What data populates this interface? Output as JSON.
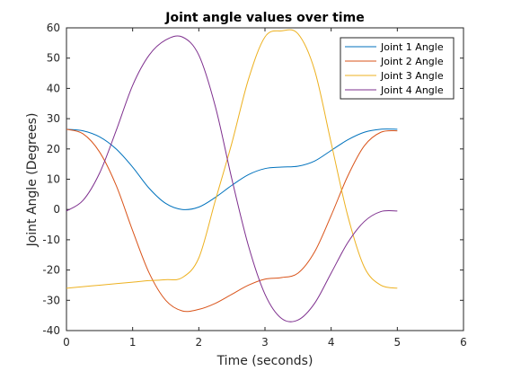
{
  "chart_data": {
    "type": "line",
    "title": "Joint angle values over time",
    "xlabel": "Time (seconds)",
    "ylabel": "Joint Angle (Degrees)",
    "xlim": [
      0,
      6
    ],
    "ylim": [
      -40,
      60
    ],
    "xticks": [
      0,
      1,
      2,
      3,
      4,
      5,
      6
    ],
    "yticks": [
      -40,
      -30,
      -20,
      -10,
      0,
      10,
      20,
      30,
      40,
      50,
      60
    ],
    "grid": false,
    "legend_position": "top-right",
    "series": [
      {
        "name": "Joint 1 Angle",
        "color": "#0072BD",
        "x": [
          0,
          0.25,
          0.5,
          0.75,
          1.0,
          1.25,
          1.5,
          1.75,
          2.0,
          2.25,
          2.5,
          2.75,
          3.0,
          3.25,
          3.5,
          3.75,
          4.0,
          4.25,
          4.5,
          4.75,
          5.0
        ],
        "y": [
          26.5,
          26,
          24,
          20,
          14,
          7,
          2,
          0,
          0.8,
          4,
          8,
          11.5,
          13.5,
          14,
          14.3,
          16,
          19.5,
          23,
          25.5,
          26.5,
          26.5
        ]
      },
      {
        "name": "Joint 2 Angle",
        "color": "#D95319",
        "x": [
          0,
          0.25,
          0.5,
          0.75,
          1.0,
          1.25,
          1.5,
          1.75,
          2.0,
          2.25,
          2.5,
          2.75,
          3.0,
          3.25,
          3.5,
          3.75,
          4.0,
          4.25,
          4.5,
          4.75,
          5.0
        ],
        "y": [
          26.5,
          25,
          19,
          8,
          -7,
          -21,
          -30,
          -33.5,
          -33,
          -31,
          -28,
          -25,
          -23,
          -22.5,
          -21,
          -14,
          -2,
          11,
          21,
          25.5,
          26
        ]
      },
      {
        "name": "Joint 3 Angle",
        "color": "#EDB120",
        "x": [
          0,
          0.25,
          0.5,
          0.75,
          1.0,
          1.25,
          1.5,
          1.75,
          2.0,
          2.25,
          2.5,
          2.75,
          3.0,
          3.25,
          3.5,
          3.75,
          4.0,
          4.25,
          4.5,
          4.75,
          5.0
        ],
        "y": [
          -26,
          -25.5,
          -25,
          -24.5,
          -24,
          -23.5,
          -23.2,
          -22.5,
          -16,
          3,
          22,
          43,
          57,
          59,
          58,
          46,
          22,
          -2,
          -19,
          -25,
          -26
        ]
      },
      {
        "name": "Joint 4 Angle",
        "color": "#7E2F8E",
        "x": [
          0,
          0.25,
          0.5,
          0.75,
          1.0,
          1.25,
          1.5,
          1.75,
          2.0,
          2.25,
          2.5,
          2.75,
          3.0,
          3.25,
          3.5,
          3.75,
          4.0,
          4.25,
          4.5,
          4.75,
          5.0
        ],
        "y": [
          -0.5,
          3,
          12,
          26,
          41,
          51,
          56,
          57,
          51,
          34,
          10,
          -12,
          -28,
          -36,
          -36.5,
          -31,
          -21,
          -11,
          -4,
          -0.7,
          -0.5
        ]
      }
    ]
  }
}
